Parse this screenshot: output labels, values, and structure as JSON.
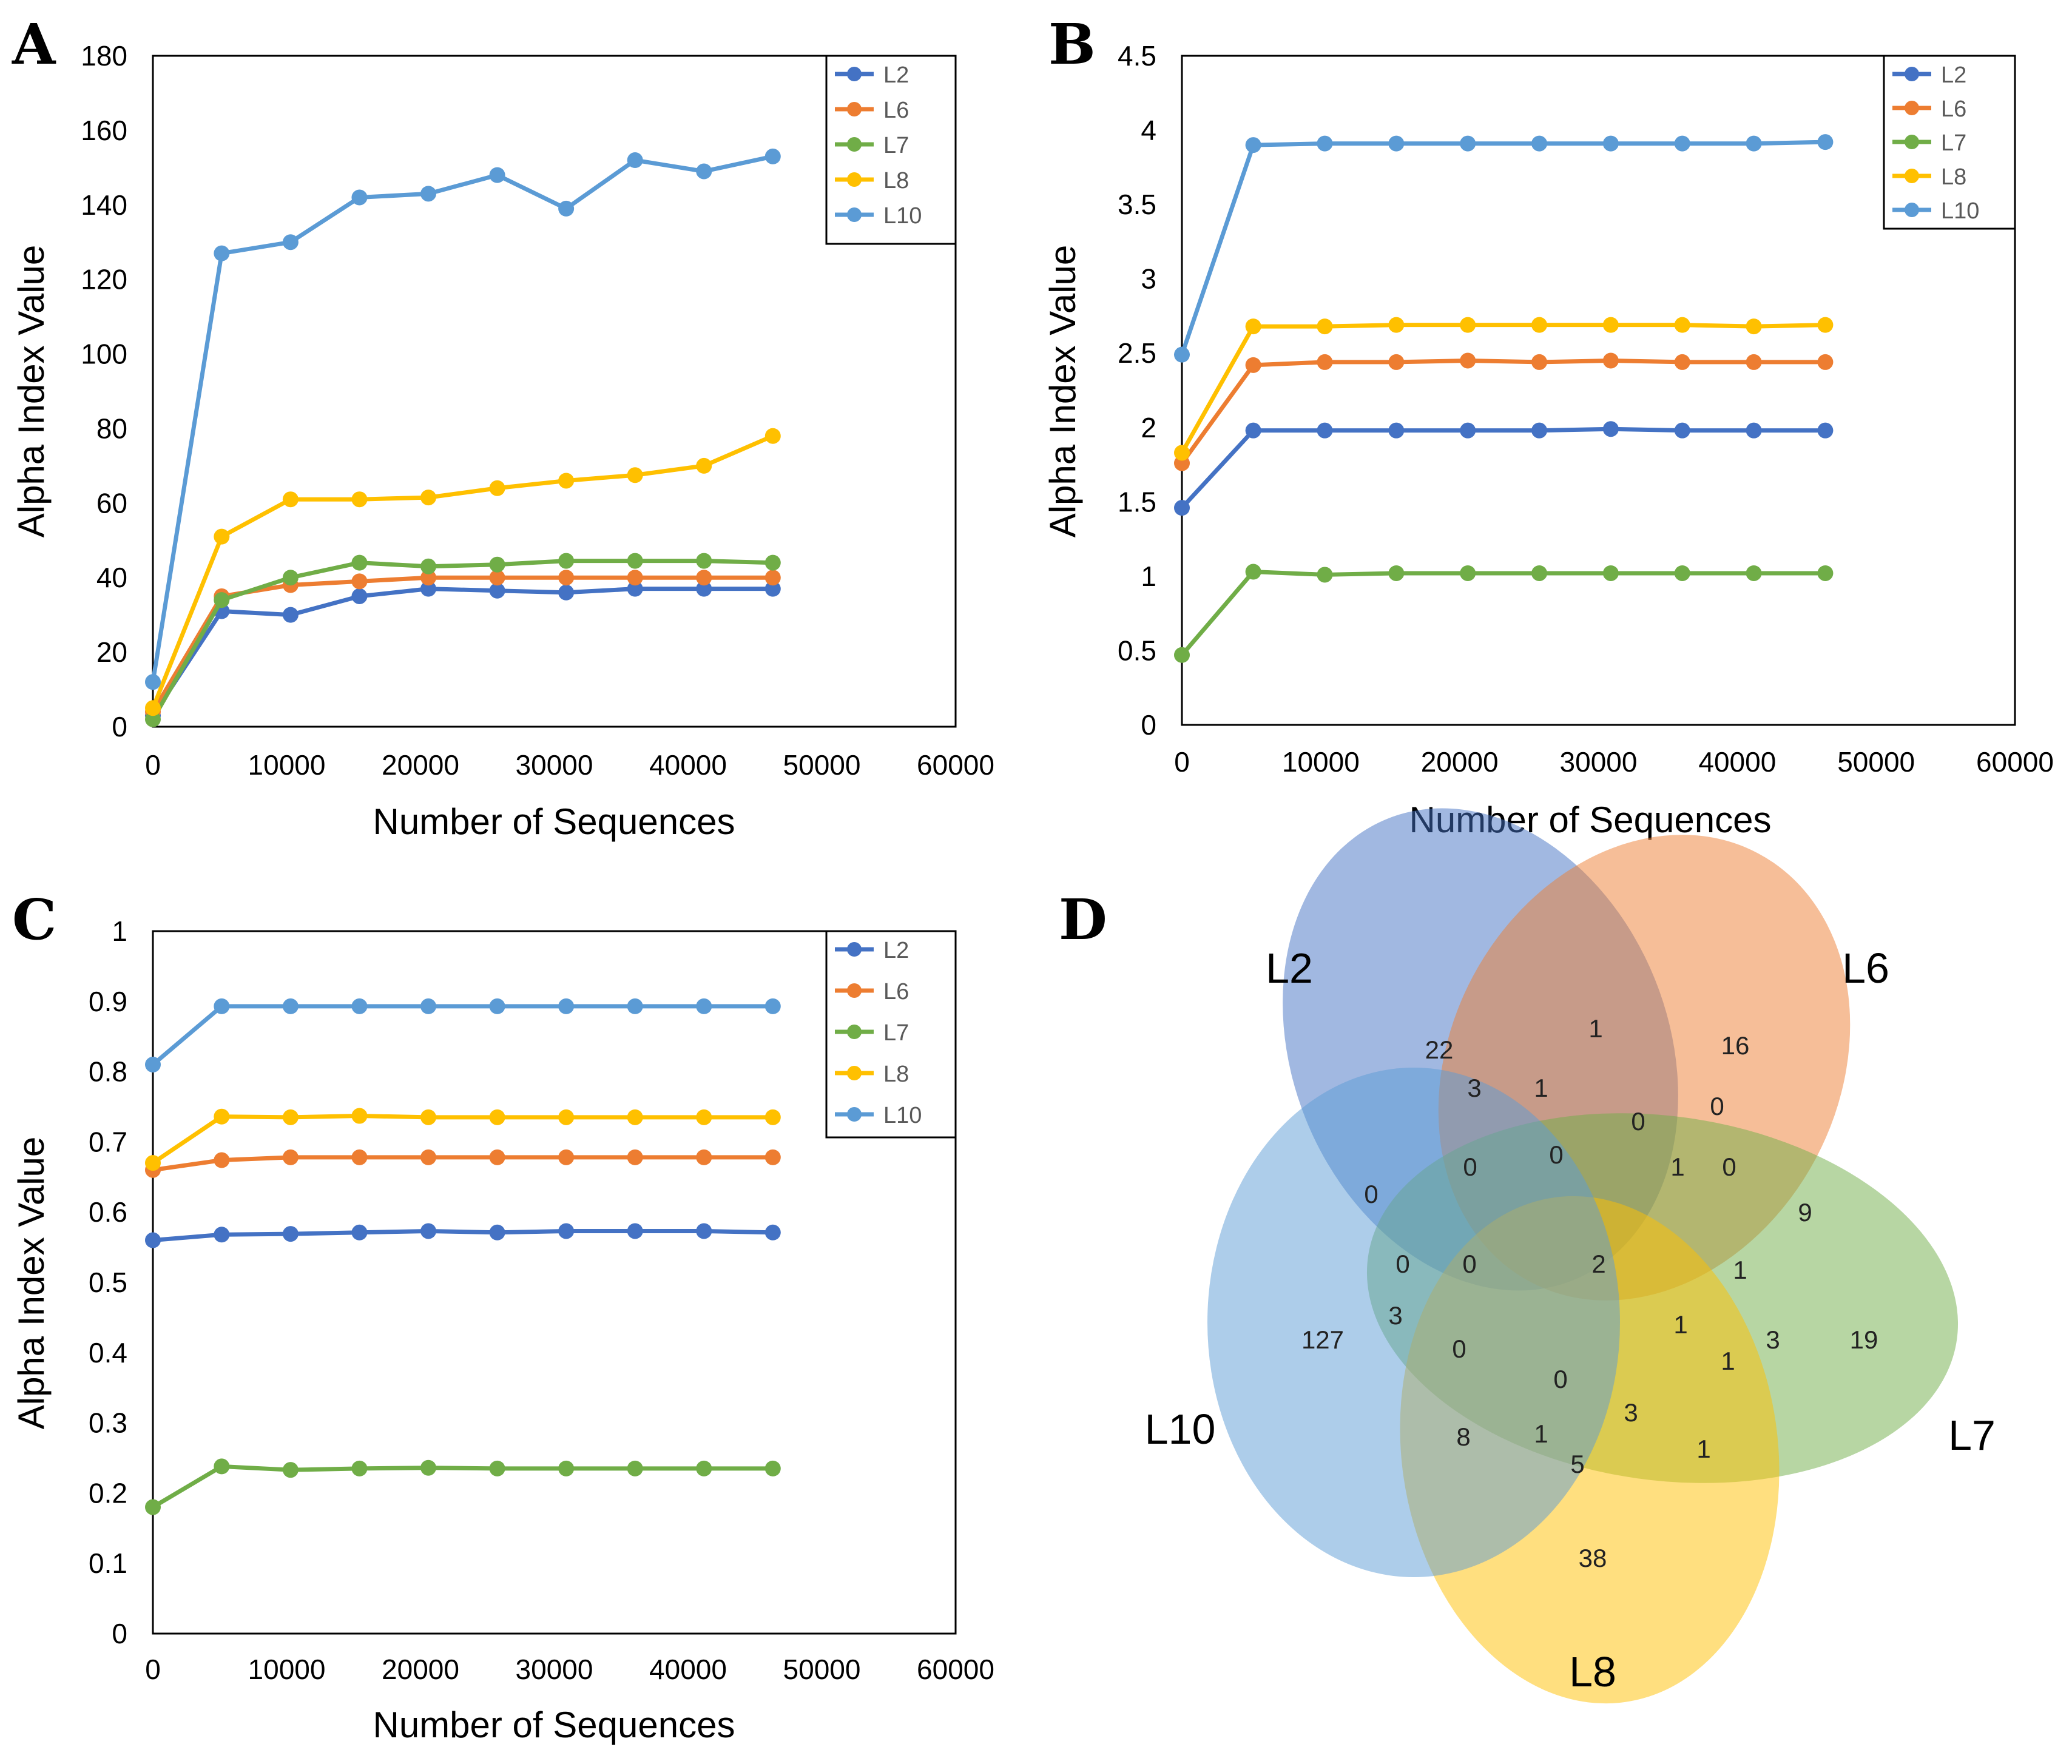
{
  "chart_data": [
    {
      "panel": "A",
      "type": "line",
      "xlabel": "Number of Sequences",
      "ylabel": "Alpha Index Value",
      "xlim": [
        0,
        60000
      ],
      "ylim": [
        0,
        180
      ],
      "xticks": [
        0,
        10000,
        20000,
        30000,
        40000,
        50000,
        60000
      ],
      "yticks": [
        0,
        20,
        40,
        60,
        80,
        100,
        120,
        140,
        160,
        180
      ],
      "x": [
        0,
        5140,
        10290,
        15440,
        20590,
        25740,
        30890,
        36040,
        41190,
        46340
      ],
      "legend_position": "top-right",
      "series": [
        {
          "name": "L2",
          "color": "#4472C4",
          "values": [
            3,
            31,
            30,
            35,
            37,
            36.5,
            36,
            37,
            37,
            37
          ]
        },
        {
          "name": "L6",
          "color": "#ED7D31",
          "values": [
            4,
            35,
            38,
            39,
            40,
            40,
            40,
            40,
            40,
            40
          ]
        },
        {
          "name": "L7",
          "color": "#70AD47",
          "values": [
            2,
            34,
            40,
            44,
            43,
            43.5,
            44.5,
            44.5,
            44.5,
            44
          ]
        },
        {
          "name": "L8",
          "color": "#FFC000",
          "values": [
            5,
            51,
            61,
            61,
            61.5,
            64,
            66,
            67.5,
            70,
            78
          ]
        },
        {
          "name": "L10",
          "color": "#5B9BD5",
          "values": [
            12,
            127,
            130,
            142,
            143,
            148,
            139,
            152,
            149,
            153
          ]
        }
      ]
    },
    {
      "panel": "B",
      "type": "line",
      "xlabel": "Number of Sequences",
      "ylabel": "Alpha Index Value",
      "xlim": [
        0,
        60000
      ],
      "ylim": [
        0,
        4.5
      ],
      "xticks": [
        0,
        10000,
        20000,
        30000,
        40000,
        50000,
        60000
      ],
      "yticks": [
        0,
        0.5,
        1,
        1.5,
        2,
        2.5,
        3,
        3.5,
        4,
        4.5
      ],
      "x": [
        0,
        5140,
        10290,
        15440,
        20590,
        25740,
        30890,
        36040,
        41190,
        46340
      ],
      "legend_position": "top-right",
      "series": [
        {
          "name": "L2",
          "color": "#4472C4",
          "values": [
            1.46,
            1.98,
            1.98,
            1.98,
            1.98,
            1.98,
            1.99,
            1.98,
            1.98,
            1.98
          ]
        },
        {
          "name": "L6",
          "color": "#ED7D31",
          "values": [
            1.76,
            2.42,
            2.44,
            2.44,
            2.45,
            2.44,
            2.45,
            2.44,
            2.44,
            2.44
          ]
        },
        {
          "name": "L7",
          "color": "#70AD47",
          "values": [
            0.47,
            1.03,
            1.01,
            1.02,
            1.02,
            1.02,
            1.02,
            1.02,
            1.02,
            1.02
          ]
        },
        {
          "name": "L8",
          "color": "#FFC000",
          "values": [
            1.83,
            2.68,
            2.68,
            2.69,
            2.69,
            2.69,
            2.69,
            2.69,
            2.68,
            2.69
          ]
        },
        {
          "name": "L10",
          "color": "#5B9BD5",
          "values": [
            2.49,
            3.9,
            3.91,
            3.91,
            3.91,
            3.91,
            3.91,
            3.91,
            3.91,
            3.92
          ]
        }
      ]
    },
    {
      "panel": "C",
      "type": "line",
      "xlabel": "Number of Sequences",
      "ylabel": "Alpha Index Value",
      "xlim": [
        0,
        60000
      ],
      "ylim": [
        0,
        1
      ],
      "xticks": [
        0,
        10000,
        20000,
        30000,
        40000,
        50000,
        60000
      ],
      "yticks": [
        0,
        0.1,
        0.2,
        0.3,
        0.4,
        0.5,
        0.6,
        0.7,
        0.8,
        0.9,
        1
      ],
      "x": [
        0,
        5140,
        10290,
        15440,
        20590,
        25740,
        30890,
        36040,
        41190,
        46340
      ],
      "legend_position": "top-right",
      "series": [
        {
          "name": "L2",
          "color": "#4472C4",
          "values": [
            0.56,
            0.568,
            0.569,
            0.571,
            0.573,
            0.571,
            0.573,
            0.573,
            0.573,
            0.571
          ]
        },
        {
          "name": "L6",
          "color": "#ED7D31",
          "values": [
            0.66,
            0.674,
            0.678,
            0.678,
            0.678,
            0.678,
            0.678,
            0.678,
            0.678,
            0.678
          ]
        },
        {
          "name": "L7",
          "color": "#70AD47",
          "values": [
            0.18,
            0.238,
            0.233,
            0.235,
            0.236,
            0.235,
            0.235,
            0.235,
            0.235,
            0.235
          ]
        },
        {
          "name": "L8",
          "color": "#FFC000",
          "values": [
            0.67,
            0.736,
            0.735,
            0.737,
            0.735,
            0.735,
            0.735,
            0.735,
            0.735,
            0.735
          ]
        },
        {
          "name": "L10",
          "color": "#5B9BD5",
          "values": [
            0.81,
            0.893,
            0.893,
            0.893,
            0.893,
            0.893,
            0.893,
            0.893,
            0.893,
            0.893
          ]
        }
      ]
    },
    {
      "panel": "D",
      "type": "venn",
      "sets": [
        {
          "name": "L2",
          "color": "#4472C4"
        },
        {
          "name": "L6",
          "color": "#ED7D31"
        },
        {
          "name": "L7",
          "color": "#70AD47"
        },
        {
          "name": "L8",
          "color": "#FFC000"
        },
        {
          "name": "L10",
          "color": "#5B9BD5"
        }
      ],
      "region_counts": [
        "22",
        "1",
        "16",
        "3",
        "1",
        "0",
        "0",
        "0",
        "0",
        "1",
        "0",
        "0",
        "9",
        "0",
        "0",
        "2",
        "1",
        "127",
        "3",
        "1",
        "3",
        "19",
        "0",
        "1",
        "0",
        "3",
        "8",
        "1",
        "5",
        "1",
        "38"
      ]
    }
  ]
}
